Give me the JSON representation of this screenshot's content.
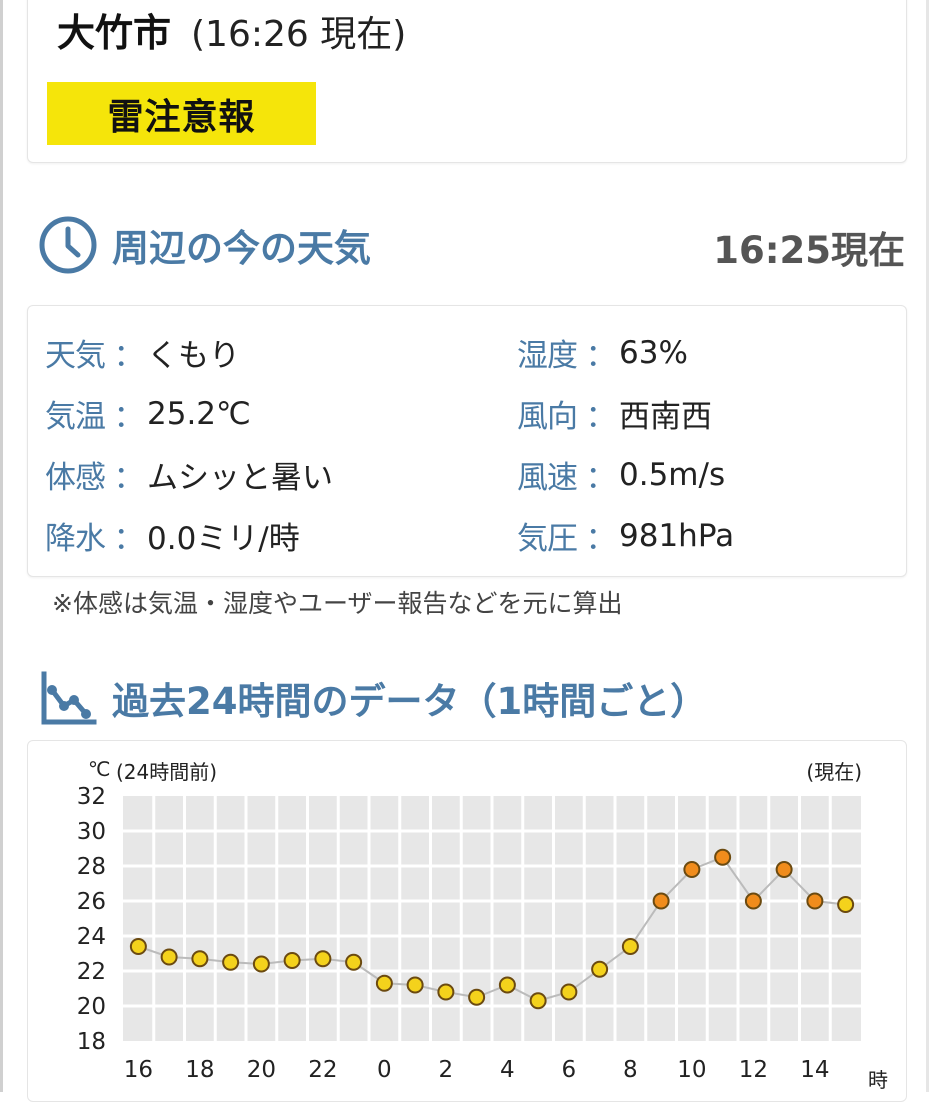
{
  "header": {
    "city": "大竹市",
    "time": "(16:26 現在)",
    "warning": "雷注意報",
    "warning_color": "#f5e50a"
  },
  "current": {
    "title": "周辺の今の天気",
    "icon": "clock-icon",
    "updated": "16:25現在",
    "accent": "#4a7aa5",
    "rows_left": [
      {
        "key": "天気",
        "value": "くもり"
      },
      {
        "key": "気温",
        "value": "25.2℃"
      },
      {
        "key": "体感",
        "value": "ムシッと暑い"
      },
      {
        "key": "降水",
        "value": "0.0ミリ/時"
      }
    ],
    "rows_right": [
      {
        "key": "湿度",
        "value": "63%"
      },
      {
        "key": "風向",
        "value": "西南西"
      },
      {
        "key": "風速",
        "value": "0.5m/s"
      },
      {
        "key": "気圧",
        "value": "981hPa"
      }
    ],
    "colon": "：",
    "note": "※体感は気温・湿度やユーザー報告などを元に算出"
  },
  "history": {
    "title": "過去24時間のデータ（1時間ごと）",
    "icon": "line-chart-icon"
  },
  "chart_data": {
    "type": "line",
    "ylabel": "℃",
    "y_ticks": [
      "32",
      "30",
      "28",
      "26",
      "24",
      "22",
      "20",
      "18"
    ],
    "ylim": [
      18,
      32
    ],
    "left_annotation": "(24時間前)",
    "right_annotation": "(現在)",
    "xlabel": "時",
    "x_ticks": [
      "16",
      "18",
      "20",
      "22",
      "0",
      "2",
      "4",
      "6",
      "8",
      "10",
      "12",
      "14"
    ],
    "x": [
      16,
      17,
      18,
      19,
      20,
      21,
      22,
      23,
      0,
      1,
      2,
      3,
      4,
      5,
      6,
      7,
      8,
      9,
      10,
      11,
      12,
      13,
      14,
      15
    ],
    "values": [
      23.4,
      22.8,
      22.7,
      22.5,
      22.4,
      22.6,
      22.7,
      22.5,
      21.3,
      21.2,
      20.8,
      20.5,
      21.2,
      20.3,
      20.8,
      22.1,
      23.4,
      26.0,
      27.8,
      28.5,
      26.0,
      27.8,
      26.0,
      25.8
    ],
    "grid": true,
    "colors": {
      "plot_bg": "#e7e7e7",
      "grid": "#ffffff",
      "line": "#bbbbbb",
      "marker_yellow": "#f4d21c",
      "marker_orange": "#f08c1c",
      "marker_stroke": "#6b4a10"
    },
    "orange_from": 26
  }
}
